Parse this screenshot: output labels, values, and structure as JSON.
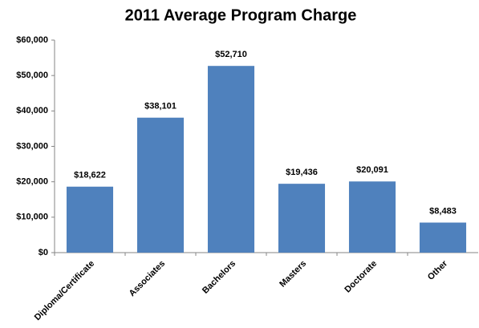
{
  "chart_data": {
    "type": "bar",
    "title": "2011 Average Program Charge",
    "categories": [
      "Diploma/Certificate",
      "Associates",
      "Bachelors",
      "Masters",
      "Doctorate",
      "Other"
    ],
    "values": [
      18622,
      38101,
      52710,
      19436,
      20091,
      8483
    ],
    "value_labels": [
      "$18,622",
      "$38,101",
      "$52,710",
      "$19,436",
      "$20,091",
      "$8,483"
    ],
    "color": "#4f81bd",
    "ylim": [
      0,
      60000
    ],
    "yticks": [
      {
        "value": 0,
        "label": "$0"
      },
      {
        "value": 10000,
        "label": "$10,000"
      },
      {
        "value": 20000,
        "label": "$20,000"
      },
      {
        "value": 30000,
        "label": "$30,000"
      },
      {
        "value": 40000,
        "label": "$40,000"
      },
      {
        "value": 50000,
        "label": "$50,000"
      },
      {
        "value": 60000,
        "label": "$60,000"
      }
    ],
    "grid": false
  }
}
